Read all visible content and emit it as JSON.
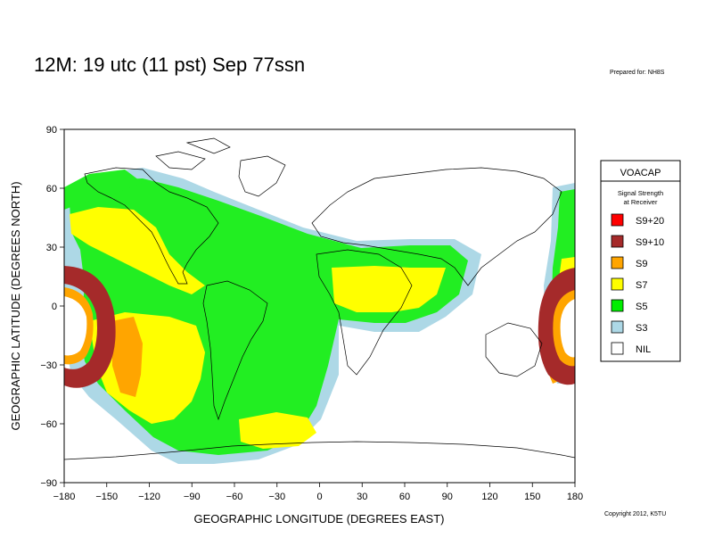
{
  "title": "12M:  19 utc (11 pst) Sep 77ssn",
  "prepared_for": "Prepared for: NH8S",
  "copyright": "Copyright 2012, K5TU",
  "axes": {
    "x_label": "GEOGRAPHIC LONGITUDE (DEGREES EAST)",
    "y_label": "GEOGRAPHIC LATITUDE (DEGREES NORTH)",
    "x_ticks": [
      "−180",
      "−150",
      "−120",
      "−90",
      "−60",
      "−30",
      "0",
      "30",
      "60",
      "90",
      "120",
      "150",
      "180"
    ],
    "y_ticks": [
      "90",
      "60",
      "30",
      "0",
      "−30",
      "−60",
      "−90"
    ],
    "x_range": [
      -180,
      180
    ],
    "y_range": [
      -90,
      90
    ]
  },
  "legend": {
    "header": "VOACAP",
    "subtitle_line1": "Signal Strength",
    "subtitle_line2": "at Receiver",
    "items": [
      {
        "label": "S9+20",
        "color": "#ff0000"
      },
      {
        "label": "S9+10",
        "color": "#a52a2a"
      },
      {
        "label": "S9",
        "color": "#ffa500"
      },
      {
        "label": "S7",
        "color": "#ffff00"
      },
      {
        "label": "S5",
        "color": "#00ee00"
      },
      {
        "label": "S3",
        "color": "#add8e6"
      },
      {
        "label": "NIL",
        "color": "#ffffff"
      }
    ]
  },
  "colors": {
    "S9p10": "#a52a2a",
    "S9": "#ffa500",
    "S7": "#ffff00",
    "S5": "#22ee22",
    "S3": "#add8e6",
    "coast": "#000000"
  }
}
